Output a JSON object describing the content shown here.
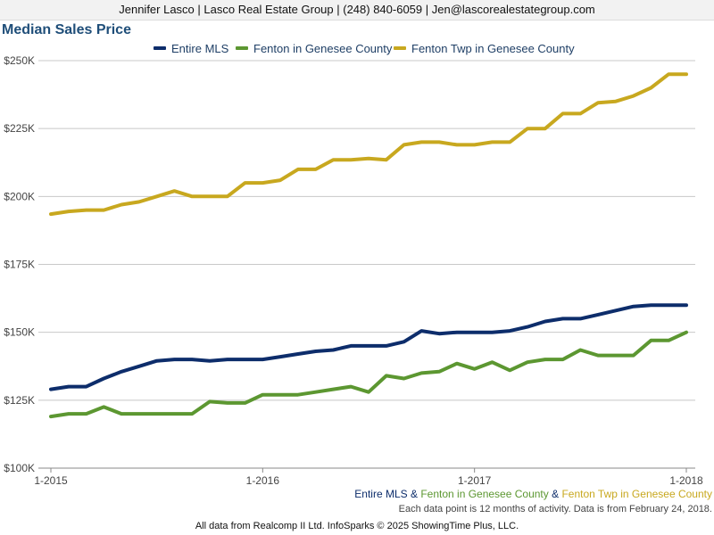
{
  "header": {
    "contact": "Jennifer Lasco | Lasco Real Estate Group | (248) 840-6059 | Jen@lascorealestategroup.com"
  },
  "chart_data": {
    "type": "line",
    "title": "Median Sales Price",
    "xlabel": "",
    "ylabel": "",
    "ylim": [
      100000,
      250000
    ],
    "yticks": [
      {
        "value": 100000,
        "label": "$100K"
      },
      {
        "value": 125000,
        "label": "$125K"
      },
      {
        "value": 150000,
        "label": "$150K"
      },
      {
        "value": 175000,
        "label": "$175K"
      },
      {
        "value": 200000,
        "label": "$200K"
      },
      {
        "value": 225000,
        "label": "$225K"
      },
      {
        "value": 250000,
        "label": "$250K"
      }
    ],
    "xticks": [
      {
        "index": 0,
        "label": "1-2015"
      },
      {
        "index": 12,
        "label": "1-2016"
      },
      {
        "index": 24,
        "label": "1-2017"
      },
      {
        "index": 36,
        "label": "1-2018"
      }
    ],
    "grid": true,
    "legend_position": "top-center",
    "x": [
      "1-2015",
      "2-2015",
      "3-2015",
      "4-2015",
      "5-2015",
      "6-2015",
      "7-2015",
      "8-2015",
      "9-2015",
      "10-2015",
      "11-2015",
      "12-2015",
      "1-2016",
      "2-2016",
      "3-2016",
      "4-2016",
      "5-2016",
      "6-2016",
      "7-2016",
      "8-2016",
      "9-2016",
      "10-2016",
      "11-2016",
      "12-2016",
      "1-2017",
      "2-2017",
      "3-2017",
      "4-2017",
      "5-2017",
      "6-2017",
      "7-2017",
      "8-2017",
      "9-2017",
      "10-2017",
      "11-2017",
      "12-2017",
      "1-2018"
    ],
    "series": [
      {
        "name": "Entire MLS",
        "color": "#0d2d6b",
        "values": [
          129000,
          130000,
          130000,
          133000,
          135500,
          137500,
          139500,
          140000,
          140000,
          139500,
          140000,
          140000,
          140000,
          141000,
          142000,
          143000,
          143500,
          145000,
          145000,
          145000,
          146500,
          150500,
          149500,
          150000,
          150000,
          150000,
          150500,
          152000,
          154000,
          155000,
          155000,
          156500,
          158000,
          159500,
          160000,
          160000,
          160000
        ]
      },
      {
        "name": "Fenton in Genesee County",
        "color": "#5c9731",
        "values": [
          119000,
          120000,
          120000,
          122500,
          120000,
          120000,
          120000,
          120000,
          120000,
          124500,
          124000,
          124000,
          127000,
          127000,
          127000,
          128000,
          129000,
          130000,
          128000,
          134000,
          133000,
          135000,
          135500,
          138500,
          136500,
          139000,
          136000,
          139000,
          140000,
          140000,
          143500,
          141500,
          141500,
          141500,
          147000,
          147000,
          150000
        ]
      },
      {
        "name": "Fenton Twp in Genesee County",
        "color": "#c8a81f",
        "values": [
          193500,
          194500,
          195000,
          195000,
          197000,
          198000,
          200000,
          202000,
          200000,
          200000,
          200000,
          205000,
          205000,
          206000,
          210000,
          210000,
          213500,
          213500,
          214000,
          213500,
          219000,
          220000,
          220000,
          219000,
          219000,
          220000,
          220000,
          225000,
          225000,
          230500,
          230500,
          234500,
          235000,
          237000,
          240000,
          245000,
          245000
        ]
      }
    ]
  },
  "bottom_legend": {
    "item0": "Entire MLS",
    "sep0": " & ",
    "item1": "Fenton in Genesee County",
    "sep1": " & ",
    "item2": "Fenton Twp in Genesee County"
  },
  "footnote": "Each data point is 12 months of activity. Data is from February 24, 2018.",
  "source": "All data from Realcomp II Ltd. InfoSparks © 2025 ShowingTime Plus, LLC."
}
